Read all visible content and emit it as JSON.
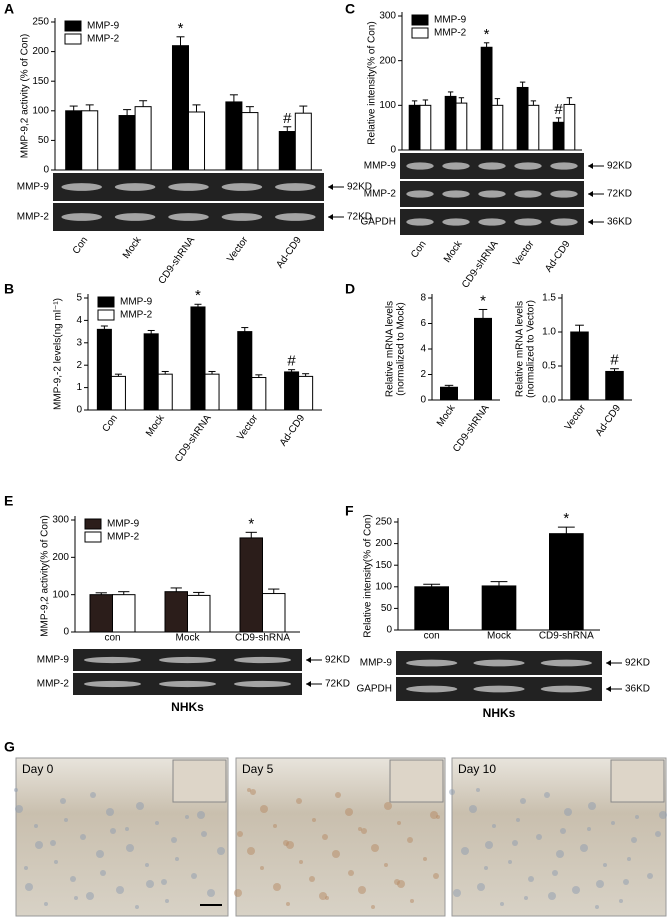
{
  "chart_data": [
    {
      "type": "bar",
      "panel": "A",
      "ylabel": "MMP-9,2 activity (% of Con)",
      "categories": [
        "Con",
        "Mock",
        "CD9-shRNA",
        "Vector",
        "Ad-CD9"
      ],
      "series": [
        {
          "name": "MMP-9",
          "color": "#000000",
          "values": [
            100,
            92,
            210,
            115,
            65
          ],
          "errors": [
            8,
            10,
            15,
            12,
            8
          ]
        },
        {
          "name": "MMP-2",
          "color": "#ffffff",
          "values": [
            100,
            107,
            98,
            97,
            96
          ],
          "errors": [
            10,
            10,
            12,
            10,
            12
          ]
        }
      ],
      "ylim": [
        0,
        250
      ],
      "yticks": [
        0,
        50,
        100,
        150,
        200,
        250
      ],
      "legend": "upper left",
      "annotations": [
        {
          "text": "*",
          "series": "MMP-9",
          "category": "CD9-shRNA"
        },
        {
          "text": "#",
          "series": "MMP-9",
          "category": "Ad-CD9"
        }
      ],
      "blot": {
        "bands": [
          "MMP-9",
          "MMP-2"
        ],
        "sizes": [
          "92KD",
          "72KD"
        ]
      }
    },
    {
      "type": "bar",
      "panel": "C",
      "ylabel": "Relative intensity(% of Con)",
      "categories": [
        "Con",
        "Mock",
        "CD9-shRNA",
        "Vector",
        "Ad-CD9"
      ],
      "series": [
        {
          "name": "MMP-9",
          "color": "#000000",
          "values": [
            100,
            120,
            230,
            140,
            62
          ],
          "errors": [
            10,
            10,
            10,
            12,
            10
          ]
        },
        {
          "name": "MMP-2",
          "color": "#ffffff",
          "values": [
            100,
            105,
            100,
            100,
            102
          ],
          "errors": [
            12,
            12,
            15,
            10,
            15
          ]
        }
      ],
      "ylim": [
        0,
        300
      ],
      "yticks": [
        0,
        100,
        200,
        300
      ],
      "legend": "upper left",
      "annotations": [
        {
          "text": "*",
          "series": "MMP-9",
          "category": "CD9-shRNA"
        },
        {
          "text": "#",
          "series": "MMP-9",
          "category": "Ad-CD9"
        }
      ],
      "blot": {
        "bands": [
          "MMP-9",
          "MMP-2",
          "GAPDH"
        ],
        "sizes": [
          "92KD",
          "72KD",
          "36KD"
        ]
      }
    },
    {
      "type": "bar",
      "panel": "B",
      "ylabel": "MMP-9,-2 levels(ng ml⁻¹)",
      "categories": [
        "Con",
        "Mock",
        "CD9-shRNA",
        "Vector",
        "Ad-CD9"
      ],
      "series": [
        {
          "name": "MMP-9",
          "color": "#000000",
          "values": [
            3.6,
            3.4,
            4.6,
            3.5,
            1.7
          ],
          "errors": [
            0.15,
            0.15,
            0.12,
            0.18,
            0.1
          ]
        },
        {
          "name": "MMP-2",
          "color": "#ffffff",
          "values": [
            1.5,
            1.6,
            1.6,
            1.45,
            1.5
          ],
          "errors": [
            0.1,
            0.12,
            0.12,
            0.12,
            0.12
          ]
        }
      ],
      "ylim": [
        0,
        5
      ],
      "yticks": [
        0,
        1,
        2,
        3,
        4,
        5
      ],
      "legend": "upper left",
      "annotations": [
        {
          "text": "*",
          "series": "MMP-9",
          "category": "CD9-shRNA"
        },
        {
          "text": "#",
          "series": "MMP-9",
          "category": "Ad-CD9"
        }
      ]
    },
    {
      "type": "bar",
      "panel": "D",
      "ylabel": [
        "Relative mRNA levels",
        "(normalized to Mock)"
      ],
      "categories": [
        "Mock",
        "CD9-shRNA"
      ],
      "values": [
        1.0,
        6.4
      ],
      "errors": [
        0.15,
        0.7
      ],
      "color": "#000000",
      "ylim": [
        0,
        8
      ],
      "yticks": [
        0,
        2,
        4,
        6,
        8
      ],
      "annotations": [
        {
          "text": "*",
          "category": "CD9-shRNA"
        }
      ]
    },
    {
      "type": "bar",
      "ylabel": [
        "Relative mRNA levels",
        "(normalized to Vector)"
      ],
      "categories": [
        "Vector",
        "Ad-CD9"
      ],
      "values": [
        1.0,
        0.42
      ],
      "errors": [
        0.1,
        0.04
      ],
      "color": "#000000",
      "ylim": [
        0,
        1.5
      ],
      "yticks": [
        {
          "value": 0,
          "label": "0.0"
        },
        0.5,
        {
          "value": 1,
          "label": "1.0"
        },
        1.5
      ],
      "annotations": [
        {
          "text": "#",
          "category": "Ad-CD9"
        }
      ]
    },
    {
      "type": "bar",
      "panel": "E",
      "ylabel": "MMP-9,2 activity(% of Con)",
      "categories": [
        "con",
        "Mock",
        "CD9-shRNA"
      ],
      "series": [
        {
          "name": "MMP-9",
          "color": "#2b1d1a",
          "values": [
            100,
            108,
            252
          ],
          "errors": [
            5,
            10,
            15
          ]
        },
        {
          "name": "MMP-2",
          "color": "#ffffff",
          "values": [
            100,
            98,
            103
          ],
          "errors": [
            8,
            8,
            12
          ]
        }
      ],
      "ylim": [
        0,
        300
      ],
      "yticks": [
        0,
        100,
        200,
        300
      ],
      "legend": "upper left",
      "annotations": [
        {
          "text": "*",
          "series": "MMP-9",
          "category": "CD9-shRNA"
        }
      ],
      "blot": {
        "bands": [
          "MMP-9",
          "MMP-2"
        ],
        "sizes": [
          "92KD",
          "72KD"
        ]
      },
      "xlabel": "NHKs"
    },
    {
      "type": "bar",
      "panel": "F",
      "ylabel": "Relative intensity(% of Con)",
      "categories": [
        "con",
        "Mock",
        "CD9-shRNA"
      ],
      "values": [
        100,
        102,
        223
      ],
      "errors": [
        6,
        10,
        15
      ],
      "color": "#000000",
      "ylim": [
        0,
        250
      ],
      "yticks": [
        0,
        50,
        100,
        150,
        200,
        250
      ],
      "annotations": [
        {
          "text": "*",
          "category": "CD9-shRNA"
        }
      ],
      "blot": {
        "bands": [
          "MMP-9",
          "GAPDH"
        ],
        "sizes": [
          "92KD",
          "36KD"
        ]
      },
      "xlabel": "NHKs"
    }
  ],
  "micrographs": {
    "panel": "G",
    "labels": [
      "Day 0",
      "Day 5",
      "Day 10"
    ]
  }
}
